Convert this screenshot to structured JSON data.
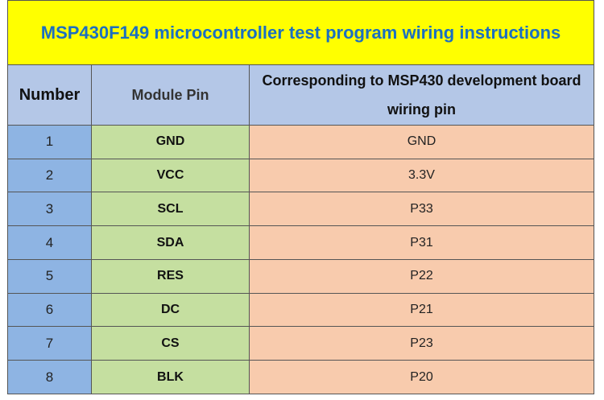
{
  "title": "MSP430F149 microcontroller test program wiring instructions",
  "headers": {
    "number": "Number",
    "module_pin": "Module Pin",
    "board_pin": "Corresponding to MSP430 development board wiring pin"
  },
  "rows": [
    {
      "number": "1",
      "module_pin": "GND",
      "board_pin": "GND"
    },
    {
      "number": "2",
      "module_pin": "VCC",
      "board_pin": "3.3V"
    },
    {
      "number": "3",
      "module_pin": "SCL",
      "board_pin": "P33"
    },
    {
      "number": "4",
      "module_pin": "SDA",
      "board_pin": "P31"
    },
    {
      "number": "5",
      "module_pin": "RES",
      "board_pin": "P22"
    },
    {
      "number": "6",
      "module_pin": "DC",
      "board_pin": "P21"
    },
    {
      "number": "7",
      "module_pin": "CS",
      "board_pin": "P23"
    },
    {
      "number": "8",
      "module_pin": "BLK",
      "board_pin": "P20"
    }
  ],
  "colors": {
    "title_bg": "#ffff00",
    "title_text": "#1b6fc1",
    "header_bg": "#b4c7e7",
    "number_bg": "#8eb4e3",
    "module_pin_bg": "#c5dfa0",
    "board_pin_bg": "#f8cbad"
  }
}
